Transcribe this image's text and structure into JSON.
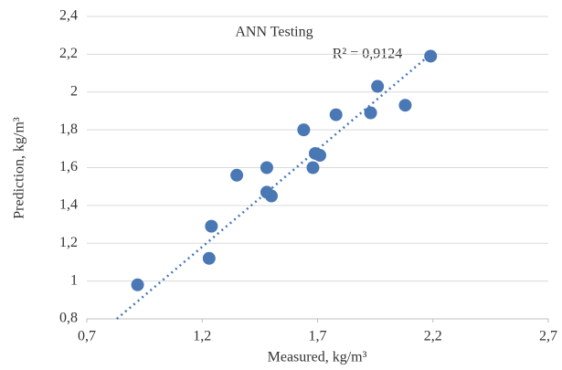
{
  "chart_data": {
    "type": "scatter",
    "title": "ANN Testing",
    "annotation": "R² = 0,9124",
    "x_label": "Measured, kg/m³",
    "y_label": "Prediction, kg/m³",
    "x": [
      0.92,
      1.23,
      1.24,
      1.35,
      1.48,
      1.48,
      1.5,
      1.64,
      1.68,
      1.69,
      1.71,
      1.78,
      1.93,
      1.96,
      2.08,
      2.19
    ],
    "values": [
      0.98,
      1.12,
      1.29,
      1.56,
      1.6,
      1.47,
      1.45,
      1.8,
      1.6,
      1.675,
      1.665,
      1.88,
      1.89,
      2.03,
      1.93,
      2.19
    ],
    "color": "#4a78b4",
    "trendline": {
      "x": [
        0.83,
        2.19
      ],
      "y": [
        0.8,
        2.2
      ]
    },
    "xlim": [
      0.7,
      2.7
    ],
    "xticks": [
      {
        "value": 0.7,
        "label": "0,7"
      },
      {
        "value": 1.2,
        "label": "1,2"
      },
      {
        "value": 1.7,
        "label": "1,7"
      },
      {
        "value": 2.2,
        "label": "2,2"
      },
      {
        "value": 2.7,
        "label": "2,7"
      }
    ],
    "ylim": [
      0.8,
      2.4
    ],
    "yticks": [
      {
        "value": 0.8,
        "label": "0,8"
      },
      1,
      {
        "value": 1.2,
        "label": "1,2"
      },
      {
        "value": 1.4,
        "label": "1,4"
      },
      {
        "value": 1.6,
        "label": "1,6"
      },
      {
        "value": 1.8,
        "label": "1,8"
      },
      2,
      {
        "value": 2.2,
        "label": "2,2"
      },
      {
        "value": 2.4,
        "label": "2,4"
      }
    ],
    "grid": true
  }
}
